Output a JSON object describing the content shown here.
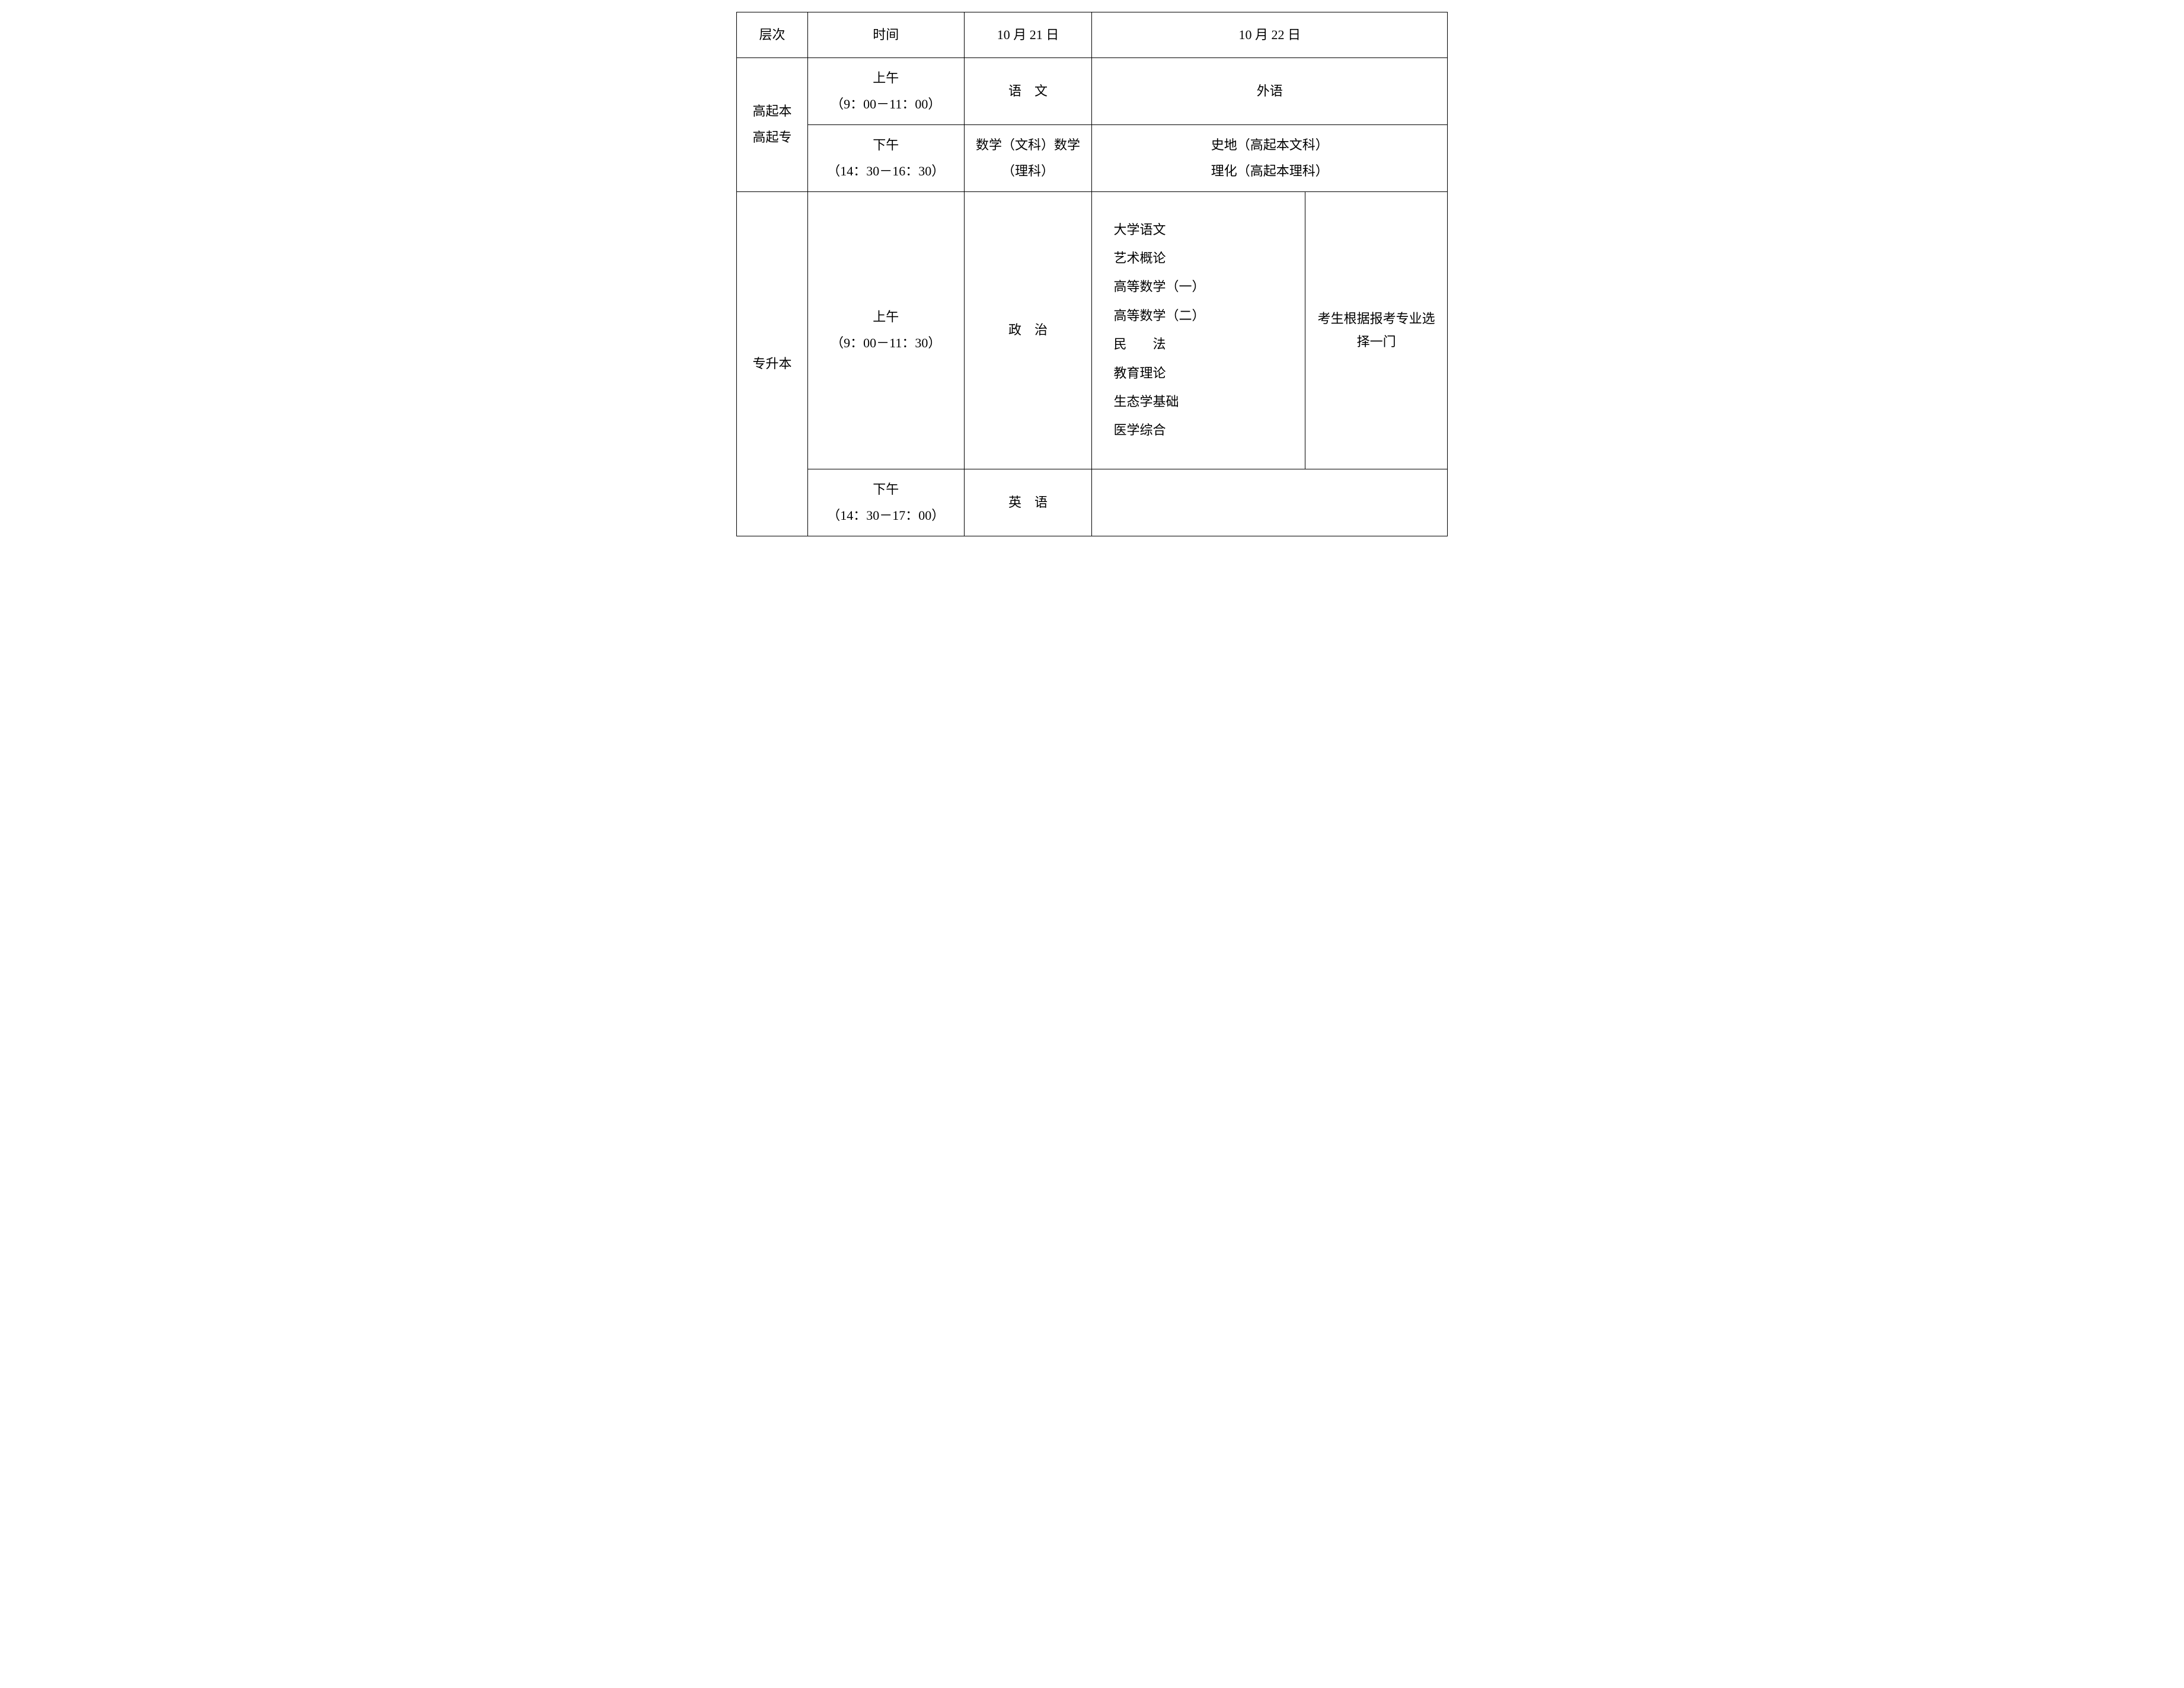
{
  "headers": {
    "level": "层次",
    "time": "时间",
    "day1": "10 月 21 日",
    "day2": "10 月 22 日"
  },
  "levels": {
    "gaoqi": "高起本\n高起专",
    "zhuanshengben": "专升本"
  },
  "times": {
    "morning1": "上午",
    "morning1_range": "（9：00－11：00）",
    "afternoon1": "下午",
    "afternoon1_range": "（14：30－16：30）",
    "morning2": "上午",
    "morning2_range": "（9：00－11：30）",
    "afternoon2": "下午",
    "afternoon2_range": "（14：30－17：00）"
  },
  "subjects": {
    "yuwen": "语　文",
    "waiyu": "外语",
    "math_text": "数学（文科）数学（理科）",
    "shidi": "史地（高起本文科）",
    "lihua": "理化（高起本理科）",
    "zhengzhi": "政　治",
    "yingyu": "英　语",
    "list": {
      "item1": "大学语文",
      "item2": "艺术概论",
      "item3": "高等数学（一）",
      "item4": "高等数学（二）",
      "item5": "民　　法",
      "item6": "教育理论",
      "item7": "生态学基础",
      "item8": "医学综合"
    },
    "note": "考生根据报考专业选择一门"
  },
  "styling": {
    "border_color": "#000000",
    "background_color": "#ffffff",
    "font_family": "SimSun",
    "font_size": 22,
    "border_width": 1.5,
    "line_height": 1.8,
    "text_color": "#000000"
  }
}
